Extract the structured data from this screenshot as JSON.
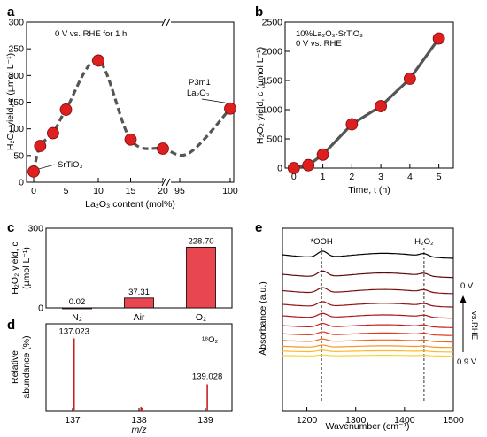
{
  "figure": {
    "panel_labels": [
      "a",
      "b",
      "c",
      "d",
      "e"
    ]
  },
  "colors": {
    "marker_fill": "#dd1f1f",
    "marker_stroke": "#7a0a0a",
    "curve": "#555555",
    "bar": "#e8474f",
    "stick": "#cc1f1f",
    "spectra": [
      "#000000",
      "#5a0a0a",
      "#7a0f0f",
      "#8e1414",
      "#a8151b",
      "#c91d1d",
      "#e23a1e",
      "#f0651f",
      "#f5962b",
      "#f7bc2e",
      "#f9d23a"
    ]
  },
  "chart_data": [
    {
      "panel": "a",
      "type": "scatter",
      "xlabel": "La₂O₃ content (mol%)",
      "ylabel": "H₂O₂ yield, c (µmol L⁻¹)",
      "ylim": [
        0,
        300
      ],
      "yticks": [
        "0",
        "50",
        "100",
        "150",
        "200",
        "250",
        "300"
      ],
      "xticks": [
        "0",
        "5",
        "10",
        "15",
        "20",
        "95",
        "100"
      ],
      "x_break": "//",
      "x": [
        0,
        1,
        3,
        5,
        10,
        15,
        20,
        100
      ],
      "y": [
        20,
        68,
        92,
        136,
        228,
        80,
        63,
        138
      ],
      "trend": "dashed",
      "annotations": [
        {
          "text": "0 V vs. RHE for 1 h"
        },
        {
          "text": "SrTiO₃"
        },
        {
          "text": "P3m1"
        },
        {
          "text": "La₂O₃"
        }
      ]
    },
    {
      "panel": "b",
      "type": "line",
      "xlabel": "Time, t (h)",
      "ylabel": "H₂O₂ yield, c (µmol L⁻¹)",
      "xlim": [
        -0.3,
        5.5
      ],
      "ylim": [
        0,
        2500
      ],
      "xticks": [
        "0",
        "1",
        "2",
        "3",
        "4",
        "5"
      ],
      "yticks": [
        "0",
        "500",
        "1000",
        "1500",
        "2000",
        "2500"
      ],
      "x": [
        0,
        0.5,
        1,
        2,
        3,
        4,
        5
      ],
      "y": [
        0,
        50,
        230,
        750,
        1060,
        1530,
        2220
      ],
      "annotations": [
        {
          "text": "10%La₂O₃-SrTiO₃"
        },
        {
          "text": "0 V vs. RHE"
        }
      ]
    },
    {
      "panel": "c",
      "type": "bar",
      "ylabel_lines": [
        "H₂O₂ yield, c",
        "(µmol L⁻¹)"
      ],
      "categories": [
        "N₂",
        "Air",
        "O₂"
      ],
      "values": [
        0.02,
        37.31,
        228.7
      ],
      "value_labels": [
        "0.02",
        "37.31",
        "228.70"
      ],
      "ylim": [
        0,
        300
      ],
      "yticks": [
        "0",
        "300"
      ]
    },
    {
      "panel": "d",
      "type": "bar",
      "style": "stick",
      "ylabel_lines": [
        "Relative",
        "abundance (%)"
      ],
      "xlabel": "m/z",
      "xlim": [
        136.6,
        139.4
      ],
      "ylim": [
        0,
        120
      ],
      "xticks": [
        "137",
        "138",
        "139"
      ],
      "x": [
        137.023,
        138.03,
        138.05,
        139.028
      ],
      "values": [
        100,
        6,
        5,
        37
      ],
      "peak_labels": [
        "137.023",
        "139.028"
      ],
      "annotation": "¹⁸O₂"
    },
    {
      "panel": "e",
      "type": "line",
      "xlabel": "Wavenumber (cm⁻¹)",
      "ylabel": "Absorbance (a.u.)",
      "xlim": [
        1150,
        1500
      ],
      "xticks": [
        "1200",
        "1300",
        "1400",
        "1500"
      ],
      "marker_lines": [
        {
          "x": 1230,
          "label": "*OOH"
        },
        {
          "x": 1440,
          "label": "H₂O₂"
        }
      ],
      "potential_top": "0 V",
      "potential_bottom": "0.9 V",
      "arrow_label": "vs.RHE",
      "series_count": 11
    }
  ]
}
